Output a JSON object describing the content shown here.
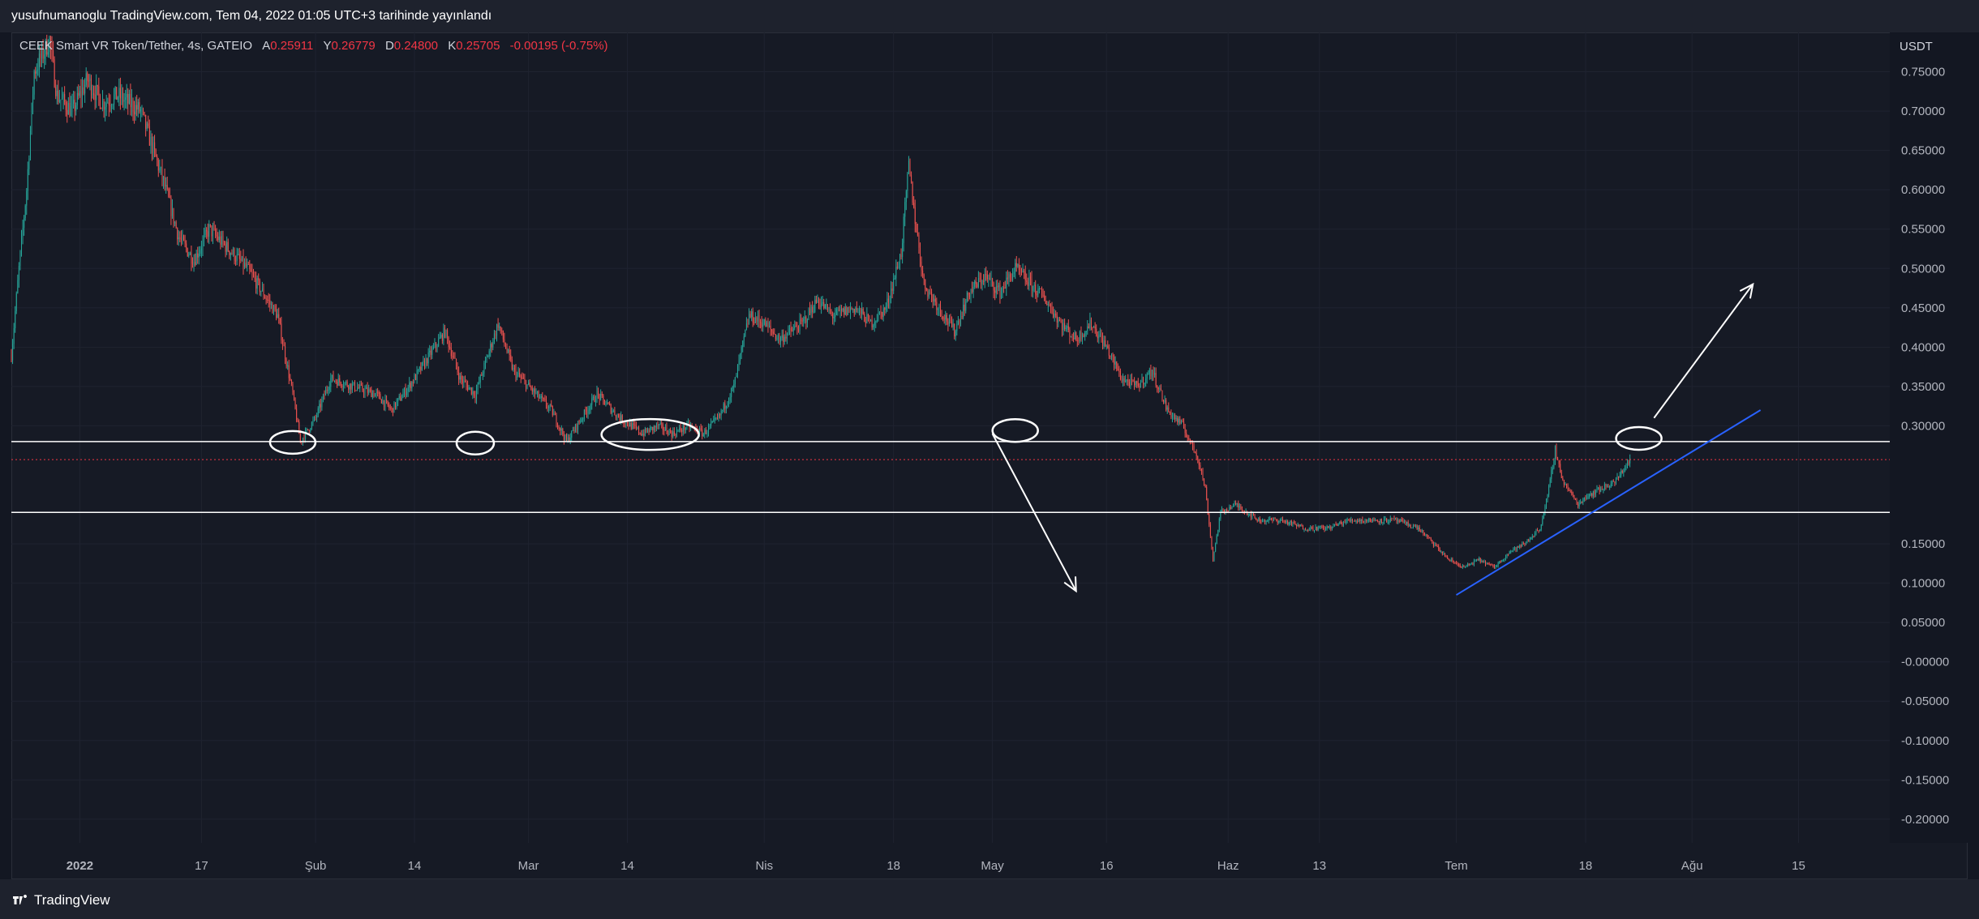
{
  "header": {
    "publish_line": "yusufnumanoglu TradingView.com, Tem 04, 2022 01:05 UTC+3 tarihinde yayınlandı"
  },
  "legend": {
    "symbol": "CEEK Smart VR Token/Tether, 4s, GATEIO",
    "open_label": "A",
    "open_value": "0.25911",
    "high_label": "Y",
    "high_value": "0.26779",
    "low_label": "D",
    "low_value": "0.24800",
    "close_label": "K",
    "close_value": "0.25705",
    "change": "-0.00195 (-0.75%)"
  },
  "footer": {
    "brand": "TradingView"
  },
  "colors": {
    "background": "#131722",
    "up": "#26a69a",
    "down": "#ef5350",
    "last_price": "#f23645",
    "trendline": "#2962ff",
    "drawing": "#ffffff"
  },
  "chart_data": {
    "type": "candlestick",
    "currency_label": "USDT",
    "ylim": [
      -0.23,
      0.8
    ],
    "y_ticks": [
      "0.75000",
      "0.70000",
      "0.65000",
      "0.60000",
      "0.55000",
      "0.50000",
      "0.45000",
      "0.40000",
      "0.35000",
      "0.30000",
      "0.15000",
      "0.10000",
      "0.05000",
      "-0.00000",
      "-0.05000",
      "-0.10000",
      "-0.15000",
      "-0.20000"
    ],
    "x_ticks": [
      {
        "label": "2022",
        "date": "2022-01-01"
      },
      {
        "label": "17",
        "date": "2022-01-17"
      },
      {
        "label": "Şub",
        "date": "2022-02-01"
      },
      {
        "label": "14",
        "date": "2022-02-14"
      },
      {
        "label": "Mar",
        "date": "2022-03-01"
      },
      {
        "label": "14",
        "date": "2022-03-14"
      },
      {
        "label": "Nis",
        "date": "2022-04-01"
      },
      {
        "label": "18",
        "date": "2022-04-18"
      },
      {
        "label": "May",
        "date": "2022-05-01"
      },
      {
        "label": "16",
        "date": "2022-05-16"
      },
      {
        "label": "Haz",
        "date": "2022-06-01"
      },
      {
        "label": "13",
        "date": "2022-06-13"
      },
      {
        "label": "Tem",
        "date": "2022-07-01"
      },
      {
        "label": "18",
        "date": "2022-07-18"
      },
      {
        "label": "Ağu",
        "date": "2022-08-01"
      },
      {
        "label": "15",
        "date": "2022-08-15"
      }
    ],
    "x_range": [
      "2021-12-23",
      "2022-08-27"
    ],
    "price_path": [
      {
        "date": "2021-12-23",
        "price": 0.39
      },
      {
        "date": "2021-12-24",
        "price": 0.5
      },
      {
        "date": "2021-12-25",
        "price": 0.6
      },
      {
        "date": "2021-12-26",
        "price": 0.75
      },
      {
        "date": "2021-12-28",
        "price": 0.79
      },
      {
        "date": "2021-12-29",
        "price": 0.72
      },
      {
        "date": "2021-12-31",
        "price": 0.7
      },
      {
        "date": "2022-01-02",
        "price": 0.74
      },
      {
        "date": "2022-01-04",
        "price": 0.71
      },
      {
        "date": "2022-01-06",
        "price": 0.72
      },
      {
        "date": "2022-01-09",
        "price": 0.7
      },
      {
        "date": "2022-01-12",
        "price": 0.61
      },
      {
        "date": "2022-01-14",
        "price": 0.54
      },
      {
        "date": "2022-01-16",
        "price": 0.51
      },
      {
        "date": "2022-01-18",
        "price": 0.55
      },
      {
        "date": "2022-01-20",
        "price": 0.53
      },
      {
        "date": "2022-01-23",
        "price": 0.5
      },
      {
        "date": "2022-01-25",
        "price": 0.47
      },
      {
        "date": "2022-01-27",
        "price": 0.44
      },
      {
        "date": "2022-01-29",
        "price": 0.34
      },
      {
        "date": "2022-01-30",
        "price": 0.28
      },
      {
        "date": "2022-02-01",
        "price": 0.31
      },
      {
        "date": "2022-02-03",
        "price": 0.36
      },
      {
        "date": "2022-02-06",
        "price": 0.35
      },
      {
        "date": "2022-02-09",
        "price": 0.34
      },
      {
        "date": "2022-02-11",
        "price": 0.32
      },
      {
        "date": "2022-02-14",
        "price": 0.36
      },
      {
        "date": "2022-02-16",
        "price": 0.39
      },
      {
        "date": "2022-02-18",
        "price": 0.42
      },
      {
        "date": "2022-02-20",
        "price": 0.36
      },
      {
        "date": "2022-02-22",
        "price": 0.34
      },
      {
        "date": "2022-02-25",
        "price": 0.43
      },
      {
        "date": "2022-02-27",
        "price": 0.37
      },
      {
        "date": "2022-03-01",
        "price": 0.35
      },
      {
        "date": "2022-03-04",
        "price": 0.32
      },
      {
        "date": "2022-03-06",
        "price": 0.28
      },
      {
        "date": "2022-03-08",
        "price": 0.31
      },
      {
        "date": "2022-03-10",
        "price": 0.34
      },
      {
        "date": "2022-03-13",
        "price": 0.31
      },
      {
        "date": "2022-03-16",
        "price": 0.29
      },
      {
        "date": "2022-03-18",
        "price": 0.3
      },
      {
        "date": "2022-03-20",
        "price": 0.29
      },
      {
        "date": "2022-03-22",
        "price": 0.3
      },
      {
        "date": "2022-03-24",
        "price": 0.29
      },
      {
        "date": "2022-03-26",
        "price": 0.31
      },
      {
        "date": "2022-03-28",
        "price": 0.35
      },
      {
        "date": "2022-03-30",
        "price": 0.44
      },
      {
        "date": "2022-04-01",
        "price": 0.43
      },
      {
        "date": "2022-04-03",
        "price": 0.41
      },
      {
        "date": "2022-04-06",
        "price": 0.43
      },
      {
        "date": "2022-04-08",
        "price": 0.46
      },
      {
        "date": "2022-04-10",
        "price": 0.44
      },
      {
        "date": "2022-04-13",
        "price": 0.45
      },
      {
        "date": "2022-04-15",
        "price": 0.43
      },
      {
        "date": "2022-04-17",
        "price": 0.45
      },
      {
        "date": "2022-04-19",
        "price": 0.52
      },
      {
        "date": "2022-04-20",
        "price": 0.63
      },
      {
        "date": "2022-04-21",
        "price": 0.55
      },
      {
        "date": "2022-04-22",
        "price": 0.48
      },
      {
        "date": "2022-04-24",
        "price": 0.45
      },
      {
        "date": "2022-04-26",
        "price": 0.42
      },
      {
        "date": "2022-04-28",
        "price": 0.47
      },
      {
        "date": "2022-04-30",
        "price": 0.49
      },
      {
        "date": "2022-05-02",
        "price": 0.47
      },
      {
        "date": "2022-05-04",
        "price": 0.5
      },
      {
        "date": "2022-05-06",
        "price": 0.48
      },
      {
        "date": "2022-05-08",
        "price": 0.46
      },
      {
        "date": "2022-05-10",
        "price": 0.43
      },
      {
        "date": "2022-05-12",
        "price": 0.41
      },
      {
        "date": "2022-05-14",
        "price": 0.43
      },
      {
        "date": "2022-05-16",
        "price": 0.4
      },
      {
        "date": "2022-05-18",
        "price": 0.36
      },
      {
        "date": "2022-05-20",
        "price": 0.35
      },
      {
        "date": "2022-05-22",
        "price": 0.37
      },
      {
        "date": "2022-05-24",
        "price": 0.32
      },
      {
        "date": "2022-05-26",
        "price": 0.3
      },
      {
        "date": "2022-05-28",
        "price": 0.26
      },
      {
        "date": "2022-05-29",
        "price": 0.22
      },
      {
        "date": "2022-05-30",
        "price": 0.13
      },
      {
        "date": "2022-05-31",
        "price": 0.19
      },
      {
        "date": "2022-06-02",
        "price": 0.2
      },
      {
        "date": "2022-06-05",
        "price": 0.18
      },
      {
        "date": "2022-06-08",
        "price": 0.18
      },
      {
        "date": "2022-06-11",
        "price": 0.17
      },
      {
        "date": "2022-06-14",
        "price": 0.17
      },
      {
        "date": "2022-06-17",
        "price": 0.18
      },
      {
        "date": "2022-06-20",
        "price": 0.18
      },
      {
        "date": "2022-06-23",
        "price": 0.18
      },
      {
        "date": "2022-06-26",
        "price": 0.17
      },
      {
        "date": "2022-06-28",
        "price": 0.15
      },
      {
        "date": "2022-06-30",
        "price": 0.13
      },
      {
        "date": "2022-07-02",
        "price": 0.12
      },
      {
        "date": "2022-07-04",
        "price": 0.13
      },
      {
        "date": "2022-07-06",
        "price": 0.12
      },
      {
        "date": "2022-07-08",
        "price": 0.14
      },
      {
        "date": "2022-07-10",
        "price": 0.15
      },
      {
        "date": "2022-07-12",
        "price": 0.17
      },
      {
        "date": "2022-07-13",
        "price": 0.21
      },
      {
        "date": "2022-07-14",
        "price": 0.27
      },
      {
        "date": "2022-07-15",
        "price": 0.23
      },
      {
        "date": "2022-07-17",
        "price": 0.2
      },
      {
        "date": "2022-07-18",
        "price": 0.21
      },
      {
        "date": "2022-07-20",
        "price": 0.22
      },
      {
        "date": "2022-07-22",
        "price": 0.23
      },
      {
        "date": "2022-07-24",
        "price": 0.26
      }
    ],
    "horizontal_levels": [
      {
        "price": 0.28,
        "label": "0.28000"
      },
      {
        "price": 0.19,
        "label": "0.19000"
      }
    ],
    "last_price": {
      "price": 0.257,
      "label": "0.25705"
    },
    "trendline": {
      "from": {
        "date": "2022-07-01",
        "price": 0.085
      },
      "to": {
        "date": "2022-08-10",
        "price": 0.32
      }
    },
    "annotations": {
      "ellipses": [
        {
          "date": "2022-01-29",
          "price": 0.279
        },
        {
          "date": "2022-02-22",
          "price": 0.278
        },
        {
          "date": "2022-03-17",
          "price": 0.289
        },
        {
          "date": "2022-05-04",
          "price": 0.294
        },
        {
          "date": "2022-07-25",
          "price": 0.284
        }
      ],
      "arrows": [
        {
          "from": {
            "date": "2022-05-01",
            "price": 0.29
          },
          "to": {
            "date": "2022-05-12",
            "price": 0.09
          }
        },
        {
          "from": {
            "date": "2022-07-27",
            "price": 0.31
          },
          "to": {
            "date": "2022-08-09",
            "price": 0.48
          }
        }
      ]
    }
  }
}
